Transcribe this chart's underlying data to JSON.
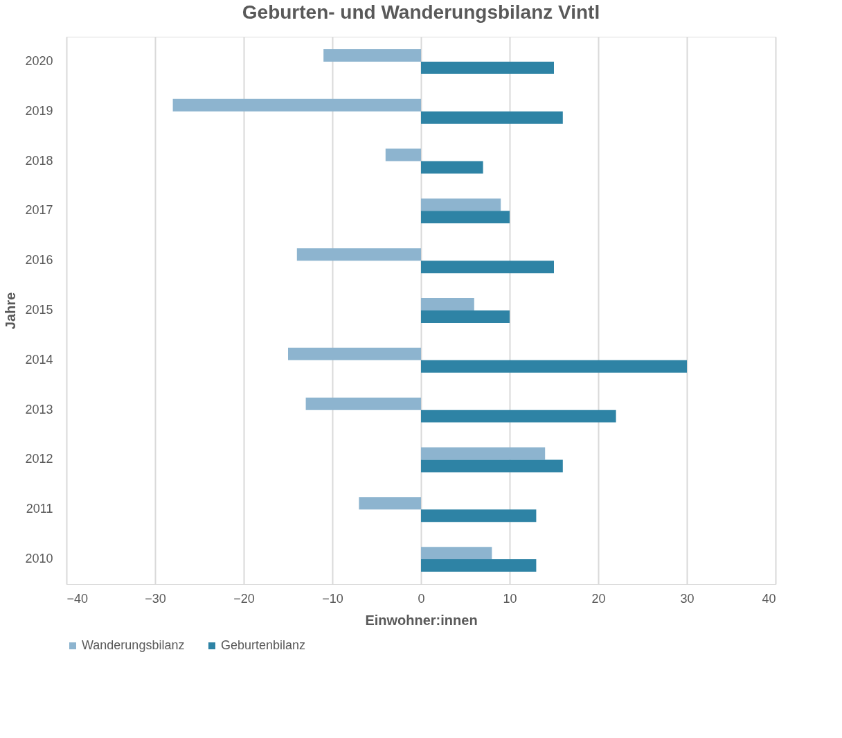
{
  "chart_data": {
    "type": "bar",
    "orientation": "horizontal",
    "title": "Geburten- und Wanderungsbilanz Vintl",
    "xlabel": "Einwohner:innen",
    "ylabel": "Jahre",
    "categories": [
      "2020",
      "2019",
      "2018",
      "2017",
      "2016",
      "2015",
      "2014",
      "2013",
      "2012",
      "2011",
      "2010"
    ],
    "series": [
      {
        "name": "Wanderungsbilanz",
        "color": "#8db4cf",
        "values": [
          -11,
          -28,
          -4,
          9,
          -14,
          6,
          -15,
          -13,
          14,
          -7,
          8
        ]
      },
      {
        "name": "Geburtenbilanz",
        "color": "#2e83a5",
        "values": [
          15,
          16,
          7,
          10,
          15,
          10,
          30,
          22,
          16,
          13,
          13
        ]
      }
    ],
    "xlim": [
      -40,
      40
    ],
    "xticks": [
      -40,
      -30,
      -20,
      -10,
      0,
      10,
      20,
      30,
      40
    ],
    "grid": "x",
    "legend": "bottom"
  }
}
